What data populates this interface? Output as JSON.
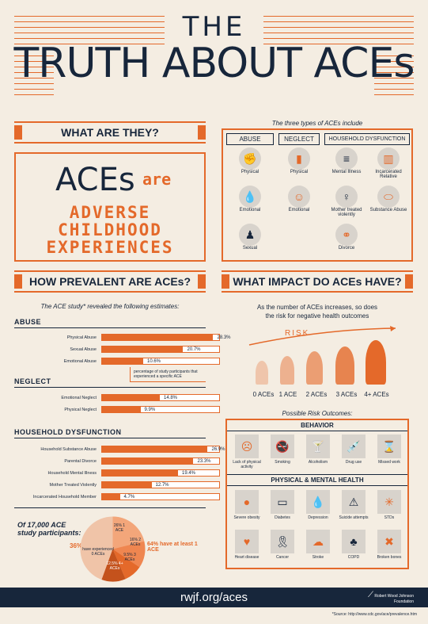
{
  "title": {
    "line1": "THE",
    "line2": "TRUTH ABOUT ACEs"
  },
  "what": {
    "header": "WHAT ARE THEY?",
    "aces": "ACEs",
    "are": "are",
    "l1": "ADVERSE",
    "l2": "CHILDHOOD",
    "l3": "EXPERIENCES"
  },
  "types": {
    "intro": "The three types of ACEs include",
    "abuse": {
      "title": "ABUSE",
      "items": [
        "Physical",
        "Emotional",
        "Sexual"
      ]
    },
    "neglect": {
      "title": "NEGLECT",
      "items": [
        "Physical",
        "Emotional"
      ]
    },
    "household": {
      "title": "HOUSEHOLD DYSFUNCTION",
      "items": [
        "Mental Illness",
        "Incarcerated Relative",
        "Mother treated violently",
        "Substance Abuse",
        "Divorce"
      ]
    }
  },
  "prevalent": {
    "header": "HOW PREVALENT ARE ACEs?",
    "intro": "The ACE study* revealed the following estimates:",
    "abuse_title": "ABUSE",
    "neglect_title": "NEGLECT",
    "household_title": "HOUSEHOLD DYSFUNCTION",
    "note": "percentage of study participants that experienced a specific ACE",
    "abuse": [
      {
        "label": "Physical Abuse",
        "value": 28.3,
        "text": "28.3%"
      },
      {
        "label": "Sexual Abuse",
        "value": 20.7,
        "text": "20.7%"
      },
      {
        "label": "Emotional Abuse",
        "value": 10.6,
        "text": "10.6%"
      }
    ],
    "neglect": [
      {
        "label": "Emotional Neglect",
        "value": 14.8,
        "text": "14.8%"
      },
      {
        "label": "Physical Neglect",
        "value": 9.9,
        "text": "9.9%"
      }
    ],
    "household": [
      {
        "label": "Household Substance Abuse",
        "value": 26.9,
        "text": "26.9%"
      },
      {
        "label": "Parental Divorce",
        "value": 23.3,
        "text": "23.3%"
      },
      {
        "label": "Household Mental Illness",
        "value": 19.4,
        "text": "19.4%"
      },
      {
        "label": "Mother Treated Violently",
        "value": 12.7,
        "text": "12.7%"
      },
      {
        "label": "Incarcerated Household Member",
        "value": 4.7,
        "text": "4.7%"
      }
    ],
    "pie_title1": "Of 17,000 ACE",
    "pie_title2": "study participants:",
    "pie": {
      "p36": "36%",
      "zero": "have experienced 0 ACEs",
      "p26": "26% 1 ACE",
      "p16": "16% 2 ACEs",
      "p95": "9.5% 3 ACEs",
      "p124": "12.5% 4+ ACEs",
      "note64": "64% have at least 1 ACE"
    }
  },
  "impact": {
    "header": "WHAT IMPACT DO ACEs HAVE?",
    "intro1": "As the number of ACEs increases, so does",
    "intro2": "the risk for negative health outcomes",
    "risk": "RISK",
    "levels": [
      "0 ACEs",
      "1 ACE",
      "2 ACEs",
      "3 ACEs",
      "4+ ACEs"
    ],
    "possible": "Possible Risk Outcomes:",
    "behavior": "BEHAVIOR",
    "behavior_items": [
      "Lack of physical activity",
      "Smoking",
      "Alcoholism",
      "Drug use",
      "Missed work"
    ],
    "health": "PHYSICAL & MENTAL HEALTH",
    "health_row1": [
      "Severe obesity",
      "Diabetes",
      "Depression",
      "Suicide attempts",
      "STDs"
    ],
    "health_row2": [
      "Heart disease",
      "Cancer",
      "Stroke",
      "COPD",
      "Broken bones"
    ]
  },
  "footer": {
    "url": "rwjf.org/aces",
    "org": "Robert Wood Johnson Foundation",
    "source": "*Source: http://www.cdc.gov/ace/prevalence.htm"
  },
  "colors": {
    "orange": "#e4692a",
    "navy": "#17263b",
    "cream": "#f4ede2"
  }
}
